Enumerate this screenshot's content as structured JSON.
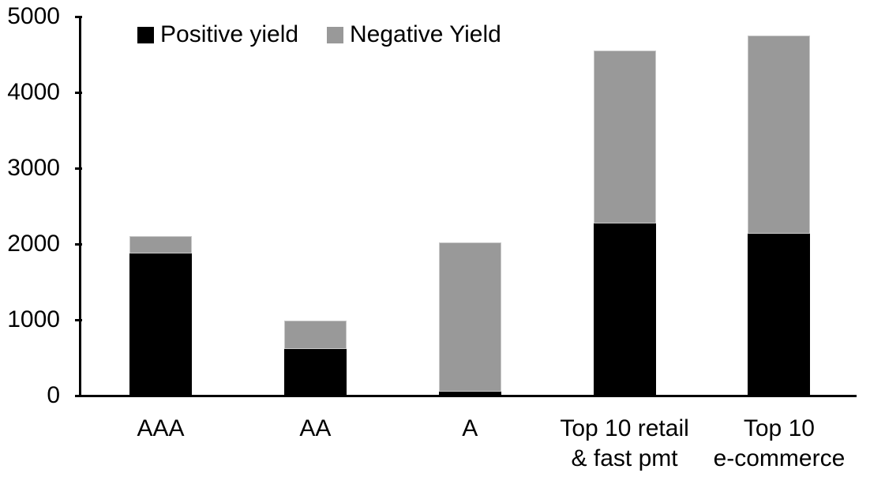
{
  "colors": {
    "positive": "#000000",
    "negative": "#999999",
    "negative_border": "#c8c8c8",
    "axis": "#000000",
    "background": "#ffffff"
  },
  "legend": {
    "items": [
      {
        "label": "Positive yield",
        "color_key": "positive"
      },
      {
        "label": "Negative Yield",
        "color_key": "negative"
      }
    ]
  },
  "chart_data": {
    "type": "bar",
    "stacked": true,
    "title": "",
    "xlabel": "",
    "ylabel": "",
    "categories": [
      "AAA",
      "AA",
      "A",
      "Top 10 retail\n& fast pmt",
      "Top 10\ne-commerce"
    ],
    "series": [
      {
        "name": "Positive yield",
        "color": "#000000",
        "values": [
          1880,
          610,
          50,
          2270,
          2140
        ]
      },
      {
        "name": "Negative Yield",
        "color": "#999999",
        "values": [
          220,
          380,
          1970,
          2280,
          2610
        ]
      }
    ],
    "totals": [
      2100,
      990,
      2020,
      4550,
      4750
    ],
    "ylim": [
      0,
      5000
    ],
    "yticks": [
      0,
      1000,
      2000,
      3000,
      4000,
      5000
    ],
    "legend_position": "top",
    "grid": false
  }
}
